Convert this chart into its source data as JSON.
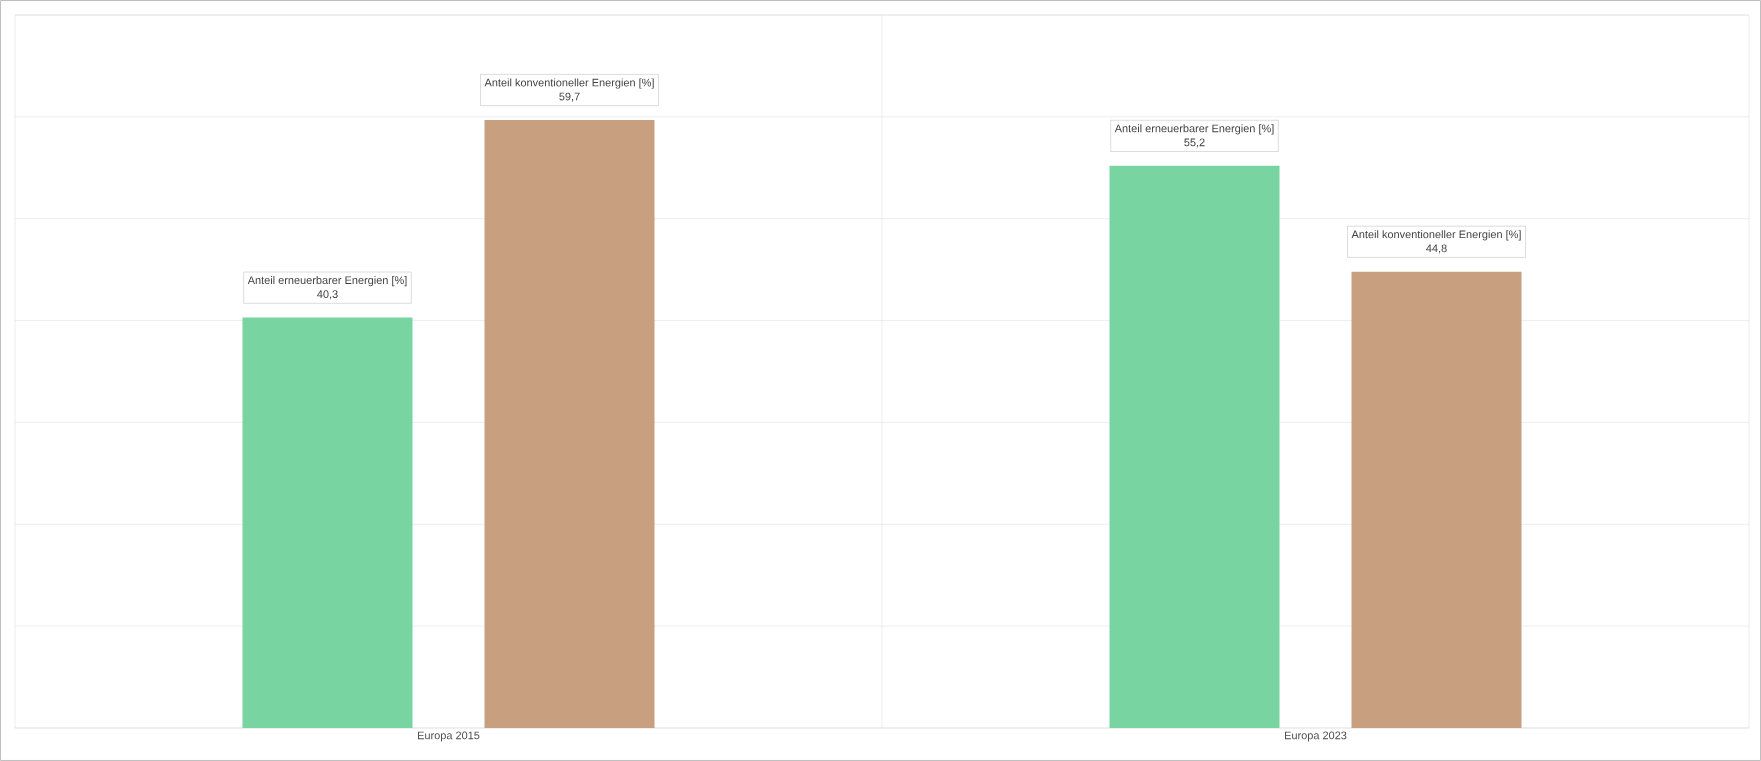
{
  "chart_data": {
    "type": "bar",
    "categories": [
      "Europa 2015",
      "Europa 2023"
    ],
    "series": [
      {
        "name": "Anteil erneuerbarer Energien [%]",
        "color": "#78d4a0",
        "values": [
          40.3,
          55.2
        ],
        "value_labels": [
          "40,3",
          "55,2"
        ]
      },
      {
        "name": "Anteil konventioneller Energien [%]",
        "color": "#c9a07f",
        "values": [
          59.7,
          44.8
        ],
        "value_labels": [
          "59,7",
          "44,8"
        ]
      }
    ],
    "ylim": [
      0,
      70
    ],
    "yticks": [
      {
        "value": 0,
        "label": null
      },
      {
        "value": 10,
        "label": null
      },
      {
        "value": 20,
        "label": null
      },
      {
        "value": 30,
        "label": null
      },
      {
        "value": 40,
        "label": null
      },
      {
        "value": 50,
        "label": null
      },
      {
        "value": 60,
        "label": null
      },
      {
        "value": 70,
        "label": null
      }
    ],
    "grid": "y",
    "legend": false,
    "tick_labels": "x"
  }
}
